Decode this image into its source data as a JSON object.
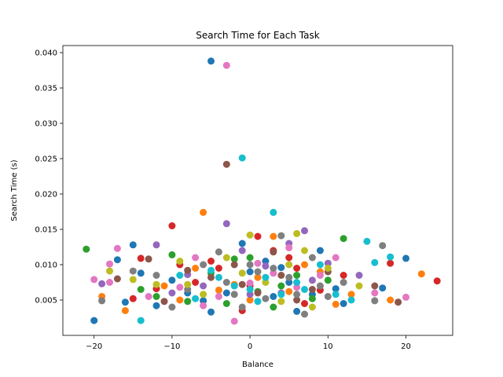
{
  "chart_data": {
    "type": "scatter",
    "title": "Search Time for Each Task",
    "xlabel": "Balance",
    "ylabel": "Search Time (s)",
    "xlim": [
      -24,
      26
    ],
    "ylim": [
      0.0,
      0.041
    ],
    "xticks": [
      -20,
      -10,
      0,
      10,
      20
    ],
    "xtick_labels": [
      "−20",
      "−10",
      "0",
      "10",
      "20"
    ],
    "yticks": [
      0.005,
      0.01,
      0.015,
      0.02,
      0.025,
      0.03,
      0.035,
      0.04
    ],
    "ytick_labels": [
      "0.005",
      "0.010",
      "0.015",
      "0.020",
      "0.025",
      "0.030",
      "0.035",
      "0.040"
    ],
    "grid": false,
    "legend": "none",
    "colors": [
      "#1f77b4",
      "#ff7f0e",
      "#2ca02c",
      "#d62728",
      "#9467bd",
      "#8c564b",
      "#e377c2",
      "#7f7f7f",
      "#bcbd22",
      "#17becf"
    ],
    "series": [
      {
        "color": "#1f77b4",
        "points": [
          [
            -5,
            0.0388
          ],
          [
            -20,
            0.0021
          ],
          [
            -15,
            0.0128
          ],
          [
            -17,
            0.0107
          ],
          [
            -16,
            0.0047
          ],
          [
            -14,
            0.0088
          ],
          [
            -1,
            0.013
          ],
          [
            -5,
            0.0033
          ],
          [
            0,
            0.009
          ],
          [
            -8,
            0.006
          ],
          [
            3,
            0.0055
          ],
          [
            5,
            0.0075
          ],
          [
            6,
            0.0034
          ],
          [
            9,
            0.012
          ],
          [
            12,
            0.0045
          ],
          [
            17,
            0.0067
          ],
          [
            20,
            0.0109
          ],
          [
            -12,
            0.0042
          ],
          [
            -3,
            0.006
          ],
          [
            2,
            0.0105
          ],
          [
            8,
            0.0058
          ],
          [
            -10,
            0.0078
          ],
          [
            4,
            0.0096
          ],
          [
            11,
            0.0066
          ],
          [
            -6,
            0.0049
          ]
        ]
      },
      {
        "color": "#ff7f0e",
        "points": [
          [
            -6,
            0.0174
          ],
          [
            -16,
            0.0035
          ],
          [
            -19,
            0.0055
          ],
          [
            22,
            0.0087
          ],
          [
            18,
            0.005
          ],
          [
            11,
            0.0044
          ],
          [
            3,
            0.014
          ],
          [
            -4,
            0.0064
          ],
          [
            1,
            0.0082
          ],
          [
            7,
            0.01
          ],
          [
            -9,
            0.005
          ],
          [
            5,
            0.0062
          ],
          [
            -2,
            0.0072
          ],
          [
            9,
            0.009
          ],
          [
            -11,
            0.007
          ],
          [
            13,
            0.0058
          ],
          [
            0,
            0.005
          ],
          [
            -7,
            0.0095
          ]
        ]
      },
      {
        "color": "#2ca02c",
        "points": [
          [
            -21,
            0.0122
          ],
          [
            12,
            0.0137
          ],
          [
            -14,
            0.0065
          ],
          [
            -2,
            0.0108
          ],
          [
            4,
            0.007
          ],
          [
            -10,
            0.0114
          ],
          [
            8,
            0.0052
          ],
          [
            0,
            0.011
          ],
          [
            -5,
            0.0088
          ],
          [
            3,
            0.004
          ],
          [
            -8,
            0.0048
          ],
          [
            6,
            0.0085
          ],
          [
            10,
            0.0078
          ],
          [
            -12,
            0.0055
          ],
          [
            1,
            0.0062
          ],
          [
            -3,
            0.0045
          ]
        ]
      },
      {
        "color": "#d62728",
        "points": [
          [
            -10,
            0.0155
          ],
          [
            -14,
            0.0109
          ],
          [
            -15,
            0.0052
          ],
          [
            24,
            0.0077
          ],
          [
            18,
            0.0102
          ],
          [
            1,
            0.014
          ],
          [
            -7,
            0.0075
          ],
          [
            5,
            0.011
          ],
          [
            -4,
            0.0095
          ],
          [
            9,
            0.0064
          ],
          [
            -1,
            0.0035
          ],
          [
            3,
            0.012
          ],
          [
            -9,
            0.01
          ],
          [
            7,
            0.0045
          ],
          [
            12,
            0.0085
          ],
          [
            -12,
            0.0066
          ],
          [
            0,
            0.007
          ],
          [
            6,
            0.0095
          ],
          [
            -5,
            0.0105
          ]
        ]
      },
      {
        "color": "#9467bd",
        "points": [
          [
            -3,
            0.0158
          ],
          [
            -19,
            0.0073
          ],
          [
            -12,
            0.0128
          ],
          [
            7,
            0.0148
          ],
          [
            14,
            0.0085
          ],
          [
            -8,
            0.0086
          ],
          [
            2,
            0.0098
          ],
          [
            -1,
            0.012
          ],
          [
            4,
            0.006
          ],
          [
            -6,
            0.007
          ],
          [
            10,
            0.0102
          ],
          [
            -10,
            0.006
          ],
          [
            8,
            0.0078
          ],
          [
            0,
            0.0058
          ],
          [
            5,
            0.013
          ]
        ]
      },
      {
        "color": "#8c564b",
        "points": [
          [
            -3,
            0.0242
          ],
          [
            -13,
            0.0108
          ],
          [
            -17,
            0.008
          ],
          [
            19,
            0.0047
          ],
          [
            16,
            0.007
          ],
          [
            3,
            0.0118
          ],
          [
            -5,
            0.0082
          ],
          [
            1,
            0.006
          ],
          [
            -8,
            0.0092
          ],
          [
            6,
            0.005
          ],
          [
            -2,
            0.01
          ],
          [
            10,
            0.009
          ],
          [
            -11,
            0.0048
          ],
          [
            4,
            0.0085
          ],
          [
            -1,
            0.0072
          ],
          [
            8,
            0.0065
          ]
        ]
      },
      {
        "color": "#e377c2",
        "points": [
          [
            -3,
            0.0382
          ],
          [
            -2,
            0.002
          ],
          [
            -20,
            0.0079
          ],
          [
            -18,
            0.0101
          ],
          [
            -17,
            0.0123
          ],
          [
            -18,
            0.0075
          ],
          [
            16,
            0.006
          ],
          [
            20,
            0.0054
          ],
          [
            5,
            0.0124
          ],
          [
            -7,
            0.011
          ],
          [
            0,
            0.0074
          ],
          [
            3,
            0.0088
          ],
          [
            -4,
            0.0055
          ],
          [
            9,
            0.0085
          ],
          [
            -9,
            0.0068
          ],
          [
            6,
            0.0068
          ],
          [
            11,
            0.011
          ],
          [
            -13,
            0.0055
          ],
          [
            1,
            0.0102
          ],
          [
            -6,
            0.0042
          ]
        ]
      },
      {
        "color": "#7f7f7f",
        "points": [
          [
            -19,
            0.0049
          ],
          [
            -15,
            0.0091
          ],
          [
            4,
            0.0141
          ],
          [
            17,
            0.0127
          ],
          [
            16,
            0.0049
          ],
          [
            7,
            0.003
          ],
          [
            -1,
            0.004
          ],
          [
            -4,
            0.0118
          ],
          [
            2,
            0.0052
          ],
          [
            -6,
            0.01
          ],
          [
            9,
            0.007
          ],
          [
            -10,
            0.004
          ],
          [
            5,
            0.0082
          ],
          [
            -8,
            0.0065
          ],
          [
            1,
            0.009
          ],
          [
            12,
            0.0075
          ],
          [
            -3,
            0.0075
          ],
          [
            8,
            0.011
          ],
          [
            -12,
            0.0085
          ],
          [
            3,
            0.0095
          ],
          [
            10,
            0.0055
          ],
          [
            -2,
            0.0058
          ],
          [
            6,
            0.0058
          ],
          [
            0,
            0.01
          ]
        ]
      },
      {
        "color": "#bcbd22",
        "points": [
          [
            -18,
            0.0091
          ],
          [
            -15,
            0.0079
          ],
          [
            0,
            0.0142
          ],
          [
            6,
            0.0144
          ],
          [
            8,
            0.004
          ],
          [
            -9,
            0.0105
          ],
          [
            -3,
            0.011
          ],
          [
            2,
            0.0075
          ],
          [
            5,
            0.01
          ],
          [
            -6,
            0.0058
          ],
          [
            10,
            0.0095
          ],
          [
            -12,
            0.0072
          ],
          [
            4,
            0.0048
          ],
          [
            -1,
            0.0088
          ],
          [
            7,
            0.012
          ],
          [
            14,
            0.007
          ],
          [
            -8,
            0.0072
          ]
        ]
      },
      {
        "color": "#17becf",
        "points": [
          [
            -1,
            0.0251
          ],
          [
            3,
            0.0174
          ],
          [
            -14,
            0.0021
          ],
          [
            15,
            0.0133
          ],
          [
            18,
            0.0111
          ],
          [
            16,
            0.0103
          ],
          [
            13,
            0.005
          ],
          [
            0,
            0.0065
          ],
          [
            -5,
            0.0092
          ],
          [
            2,
            0.0082
          ],
          [
            4,
            0.0058
          ],
          [
            -2,
            0.007
          ],
          [
            7,
            0.0065
          ],
          [
            -7,
            0.0052
          ],
          [
            1,
            0.0048
          ],
          [
            9,
            0.01
          ],
          [
            11,
            0.0058
          ],
          [
            -4,
            0.0082
          ],
          [
            6,
            0.0075
          ],
          [
            -9,
            0.0085
          ]
        ]
      }
    ]
  }
}
